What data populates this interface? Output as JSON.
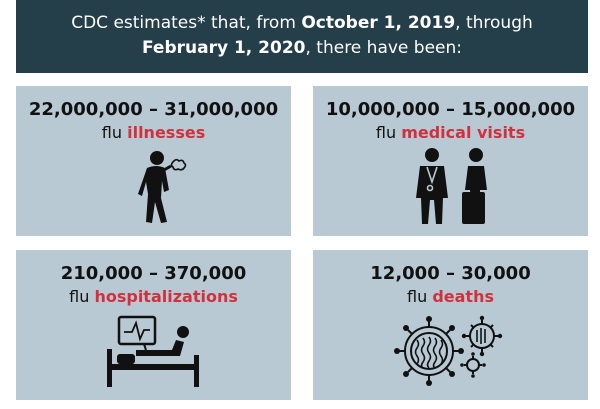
{
  "banner": {
    "prefix": "CDC estimates* that, from ",
    "date_start": "October 1, 2019",
    "middle": ", through ",
    "date_end": "February 1, 2020",
    "suffix": ", there have been:"
  },
  "cards": [
    {
      "range": "22,000,000 – 31,000,000",
      "lead": "flu ",
      "highlight": "illnesses",
      "icon": "sick-person-icon"
    },
    {
      "range": "10,000,000 – 15,000,000",
      "lead": "flu ",
      "highlight": "medical visits",
      "icon": "doctor-patient-icon"
    },
    {
      "range": "210,000 – 370,000",
      "lead": "flu ",
      "highlight": "hospitalizations",
      "icon": "hospital-bed-icon"
    },
    {
      "range": "12,000 – 30,000",
      "lead": "flu ",
      "highlight": "deaths",
      "icon": "virus-icon"
    }
  ],
  "colors": {
    "banner_bg": "#243e4a",
    "card_bg": "#b9c9d4",
    "highlight": "#d0313c"
  }
}
